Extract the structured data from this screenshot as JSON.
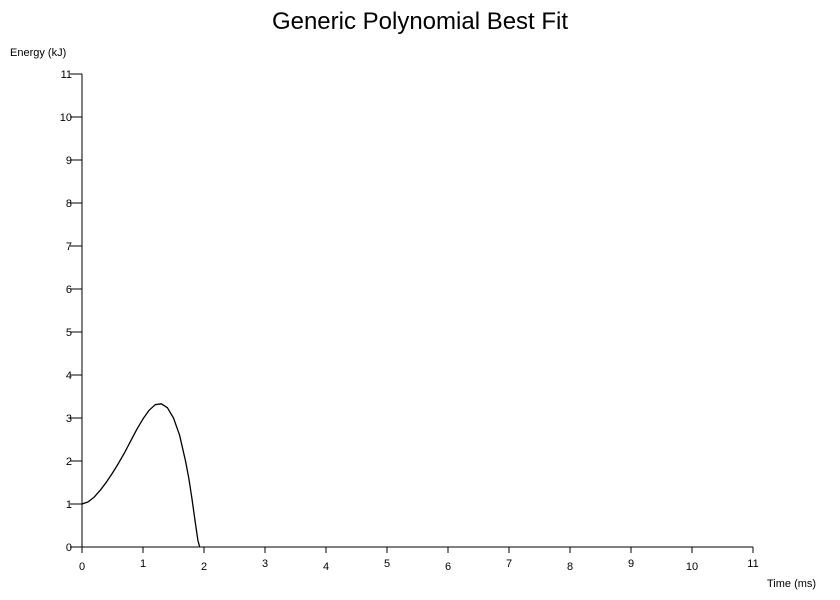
{
  "chart_data": {
    "type": "line",
    "title": "Generic Polynomial Best Fit",
    "xlabel": "Time (ms)",
    "ylabel": "Energy (kJ)",
    "xlim": [
      0,
      11
    ],
    "ylim": [
      0,
      11
    ],
    "x_ticks": [
      "0",
      "1",
      "2",
      "3",
      "4",
      "5",
      "6",
      "7",
      "8",
      "9",
      "10",
      "11"
    ],
    "y_ticks": [
      "0",
      "1",
      "2",
      "3",
      "4",
      "5",
      "6",
      "7",
      "8",
      "9",
      "10",
      "11"
    ],
    "grid": false,
    "legend": "none",
    "series": [
      {
        "color": "#000000",
        "x": [
          0,
          0.1,
          0.2,
          0.3,
          0.4,
          0.5,
          0.6,
          0.7,
          0.8,
          0.9,
          1.0,
          1.1,
          1.2,
          1.3,
          1.4,
          1.5,
          1.6,
          1.7,
          1.75,
          1.8,
          1.85,
          1.9,
          1.93
        ],
        "y": [
          1.0,
          1.05,
          1.16,
          1.32,
          1.51,
          1.72,
          1.95,
          2.2,
          2.47,
          2.74,
          2.98,
          3.18,
          3.31,
          3.33,
          3.24,
          3.0,
          2.6,
          1.98,
          1.6,
          1.15,
          0.65,
          0.15,
          0.0
        ]
      }
    ]
  }
}
